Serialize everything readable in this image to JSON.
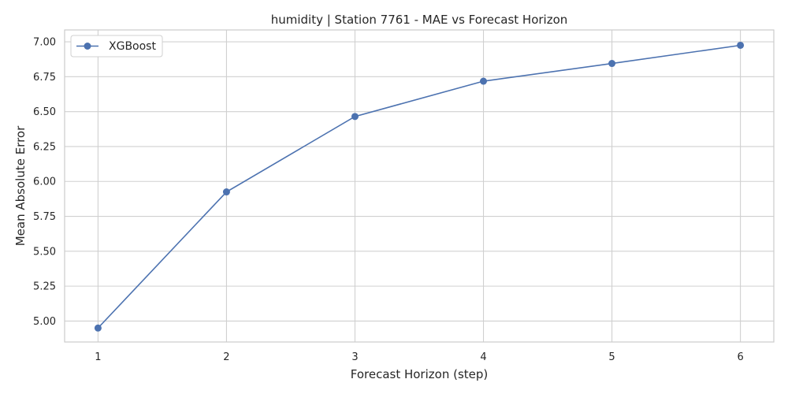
{
  "chart_data": {
    "type": "line",
    "title": "humidity | Station 7761 - MAE vs Forecast Horizon",
    "xlabel": "Forecast Horizon (step)",
    "ylabel": "Mean Absolute Error",
    "x": [
      1,
      2,
      3,
      4,
      5,
      6
    ],
    "xticks": [
      "1",
      "2",
      "3",
      "4",
      "5",
      "6"
    ],
    "yticks": [
      "5.00",
      "5.25",
      "5.50",
      "5.75",
      "6.00",
      "6.25",
      "6.50",
      "6.75",
      "7.00"
    ],
    "xlim": [
      0.74,
      6.26
    ],
    "ylim": [
      4.85,
      7.085
    ],
    "grid": true,
    "legend_position": "top-left",
    "series": [
      {
        "name": "XGBoost",
        "color": "#4c72b0",
        "marker": "circle",
        "values": [
          4.95,
          5.925,
          6.465,
          6.718,
          6.845,
          6.975
        ]
      }
    ]
  }
}
